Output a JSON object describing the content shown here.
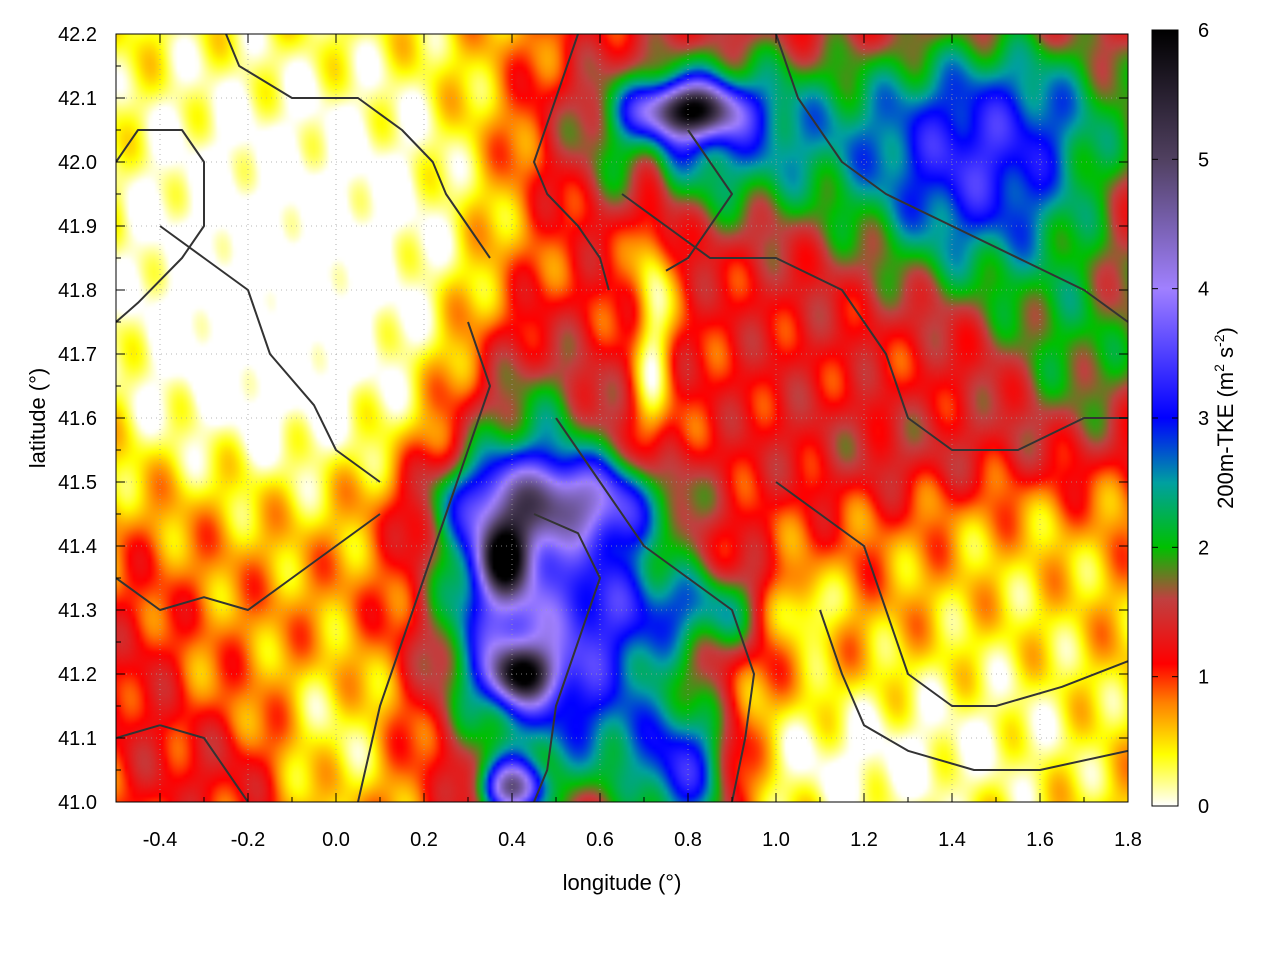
{
  "chart_data": {
    "type": "heatmap",
    "title": "",
    "xlabel": "longitude (°)",
    "ylabel": "latitude (°)",
    "xlim": [
      -0.5,
      1.8
    ],
    "ylim": [
      41.0,
      42.2
    ],
    "x_ticks": [
      "-0.4",
      "-0.2",
      "0.0",
      "0.2",
      "0.4",
      "0.6",
      "0.8",
      "1.0",
      "1.2",
      "1.4",
      "1.6",
      "1.8"
    ],
    "x_tick_values": [
      -0.4,
      -0.2,
      0.0,
      0.2,
      0.4,
      0.6,
      0.8,
      1.0,
      1.2,
      1.4,
      1.6,
      1.8
    ],
    "y_ticks": [
      "41.0",
      "41.1",
      "41.2",
      "41.3",
      "41.4",
      "41.5",
      "41.6",
      "41.7",
      "41.8",
      "41.9",
      "42.0",
      "42.1",
      "42.2"
    ],
    "y_tick_values": [
      41.0,
      41.1,
      41.2,
      41.3,
      41.4,
      41.5,
      41.6,
      41.7,
      41.8,
      41.9,
      42.0,
      42.1,
      42.2
    ],
    "grid": true,
    "colorbar": {
      "label_base": "200m-TKE (m",
      "label_sup1": "2",
      "label_mid": " s",
      "label_sup2": "-2",
      "label_end": ")",
      "range": [
        0,
        6
      ],
      "ticks": [
        "0",
        "1",
        "2",
        "3",
        "4",
        "5",
        "6"
      ],
      "tick_values": [
        0,
        1,
        2,
        3,
        4,
        5,
        6
      ],
      "palette_stops": [
        {
          "v": 0.0,
          "color": "#ffffff"
        },
        {
          "v": 0.4,
          "color": "#ffff00"
        },
        {
          "v": 0.8,
          "color": "#ff8000"
        },
        {
          "v": 1.1,
          "color": "#ff0000"
        },
        {
          "v": 1.6,
          "color": "#c04040"
        },
        {
          "v": 2.0,
          "color": "#00c000"
        },
        {
          "v": 2.5,
          "color": "#00a0a0"
        },
        {
          "v": 3.0,
          "color": "#0000ff"
        },
        {
          "v": 4.0,
          "color": "#a080ff"
        },
        {
          "v": 5.0,
          "color": "#504060"
        },
        {
          "v": 6.0,
          "color": "#000000"
        }
      ]
    },
    "field": {
      "background": 0.9,
      "blobs": [
        {
          "x": -0.35,
          "y": 41.9,
          "sx": 0.25,
          "sy": 0.35,
          "v": -0.8
        },
        {
          "x": 0.15,
          "y": 41.95,
          "sx": 0.25,
          "sy": 0.25,
          "v": -0.8
        },
        {
          "x": -0.1,
          "y": 41.65,
          "sx": 0.25,
          "sy": 0.15,
          "v": -0.5
        },
        {
          "x": -0.45,
          "y": 41.2,
          "sx": 0.08,
          "sy": 0.15,
          "v": 0.4
        },
        {
          "x": 0.45,
          "y": 41.7,
          "sx": 0.15,
          "sy": 0.15,
          "v": 0.5
        },
        {
          "x": 0.45,
          "y": 41.6,
          "sx": 0.12,
          "sy": 0.08,
          "v": 0.6
        },
        {
          "x": 0.85,
          "y": 42.05,
          "sx": 0.25,
          "sy": 0.1,
          "v": 1.8
        },
        {
          "x": 0.8,
          "y": 42.08,
          "sx": 0.08,
          "sy": 0.03,
          "v": 3.5
        },
        {
          "x": 1.45,
          "y": 41.95,
          "sx": 0.2,
          "sy": 0.12,
          "v": 1.8
        },
        {
          "x": 1.55,
          "y": 42.1,
          "sx": 0.25,
          "sy": 0.1,
          "v": 1.2
        },
        {
          "x": 0.5,
          "y": 41.47,
          "sx": 0.18,
          "sy": 0.05,
          "v": 2.5
        },
        {
          "x": 0.4,
          "y": 41.3,
          "sx": 0.12,
          "sy": 0.15,
          "v": 2.6
        },
        {
          "x": 0.38,
          "y": 41.38,
          "sx": 0.04,
          "sy": 0.04,
          "v": 3.0
        },
        {
          "x": 0.42,
          "y": 41.2,
          "sx": 0.05,
          "sy": 0.03,
          "v": 2.8
        },
        {
          "x": 0.6,
          "y": 41.15,
          "sx": 0.12,
          "sy": 0.12,
          "v": 1.5
        },
        {
          "x": 0.8,
          "y": 41.05,
          "sx": 0.08,
          "sy": 0.08,
          "v": 2.2
        },
        {
          "x": 0.4,
          "y": 41.02,
          "sx": 0.05,
          "sy": 0.03,
          "v": 3.0
        },
        {
          "x": 0.85,
          "y": 41.3,
          "sx": 0.12,
          "sy": 0.05,
          "v": 1.4
        },
        {
          "x": 1.05,
          "y": 41.3,
          "sx": 0.06,
          "sy": 0.04,
          "v": -1.0
        },
        {
          "x": 0.72,
          "y": 41.75,
          "sx": 0.03,
          "sy": 0.2,
          "v": -0.9
        },
        {
          "x": 0.65,
          "y": 41.35,
          "sx": 0.1,
          "sy": 0.1,
          "v": 1.2
        },
        {
          "x": 1.5,
          "y": 41.1,
          "sx": 0.3,
          "sy": 0.15,
          "v": -0.7
        },
        {
          "x": 1.1,
          "y": 41.05,
          "sx": 0.2,
          "sy": 0.08,
          "v": -0.6
        },
        {
          "x": 1.6,
          "y": 41.4,
          "sx": 0.2,
          "sy": 0.1,
          "v": -0.3
        },
        {
          "x": 1.0,
          "y": 41.7,
          "sx": 0.2,
          "sy": 0.15,
          "v": 0.3
        },
        {
          "x": 1.3,
          "y": 41.55,
          "sx": 0.2,
          "sy": 0.06,
          "v": 0.5
        },
        {
          "x": 1.7,
          "y": 41.7,
          "sx": 0.15,
          "sy": 0.12,
          "v": 1.0
        },
        {
          "x": -0.3,
          "y": 41.45,
          "sx": 0.12,
          "sy": 0.1,
          "v": 0.2
        },
        {
          "x": 0.0,
          "y": 41.1,
          "sx": 0.1,
          "sy": 0.1,
          "v": -0.6
        },
        {
          "x": -0.25,
          "y": 41.05,
          "sx": 0.1,
          "sy": 0.06,
          "v": 0.4
        }
      ]
    },
    "contours": [
      [
        [
          -0.5,
          42.0
        ],
        [
          -0.45,
          42.05
        ],
        [
          -0.35,
          42.05
        ],
        [
          -0.3,
          42.0
        ],
        [
          -0.3,
          41.9
        ],
        [
          -0.35,
          41.85
        ],
        [
          -0.45,
          41.78
        ],
        [
          -0.5,
          41.75
        ]
      ],
      [
        [
          -0.25,
          42.2
        ],
        [
          -0.22,
          42.15
        ],
        [
          -0.1,
          42.1
        ],
        [
          0.05,
          42.1
        ],
        [
          0.15,
          42.05
        ],
        [
          0.22,
          42.0
        ],
        [
          0.25,
          41.95
        ],
        [
          0.3,
          41.9
        ],
        [
          0.35,
          41.85
        ]
      ],
      [
        [
          -0.4,
          41.9
        ],
        [
          -0.3,
          41.85
        ],
        [
          -0.2,
          41.8
        ],
        [
          -0.15,
          41.7
        ],
        [
          -0.05,
          41.62
        ],
        [
          0.0,
          41.55
        ],
        [
          0.1,
          41.5
        ]
      ],
      [
        [
          0.55,
          42.2
        ],
        [
          0.5,
          42.1
        ],
        [
          0.45,
          42.0
        ],
        [
          0.48,
          41.95
        ],
        [
          0.55,
          41.9
        ],
        [
          0.6,
          41.85
        ],
        [
          0.62,
          41.8
        ]
      ],
      [
        [
          0.8,
          42.05
        ],
        [
          0.85,
          42.0
        ],
        [
          0.9,
          41.95
        ],
        [
          0.85,
          41.9
        ],
        [
          0.8,
          41.85
        ],
        [
          0.75,
          41.83
        ]
      ],
      [
        [
          1.0,
          42.2
        ],
        [
          1.05,
          42.1
        ],
        [
          1.15,
          42.0
        ],
        [
          1.25,
          41.95
        ],
        [
          1.4,
          41.9
        ],
        [
          1.55,
          41.85
        ],
        [
          1.7,
          41.8
        ],
        [
          1.8,
          41.75
        ]
      ],
      [
        [
          0.3,
          41.75
        ],
        [
          0.35,
          41.65
        ],
        [
          0.3,
          41.55
        ],
        [
          0.25,
          41.45
        ],
        [
          0.2,
          41.35
        ],
        [
          0.15,
          41.25
        ],
        [
          0.1,
          41.15
        ],
        [
          0.05,
          41.0
        ]
      ],
      [
        [
          0.5,
          41.6
        ],
        [
          0.6,
          41.5
        ],
        [
          0.7,
          41.4
        ],
        [
          0.8,
          41.35
        ],
        [
          0.9,
          41.3
        ],
        [
          0.95,
          41.2
        ],
        [
          0.93,
          41.1
        ],
        [
          0.9,
          41.0
        ]
      ],
      [
        [
          1.0,
          41.5
        ],
        [
          1.1,
          41.45
        ],
        [
          1.2,
          41.4
        ],
        [
          1.25,
          41.3
        ],
        [
          1.3,
          41.2
        ],
        [
          1.4,
          41.15
        ],
        [
          1.5,
          41.15
        ],
        [
          1.65,
          41.18
        ],
        [
          1.8,
          41.22
        ]
      ],
      [
        [
          1.1,
          41.3
        ],
        [
          1.15,
          41.2
        ],
        [
          1.2,
          41.12
        ],
        [
          1.3,
          41.08
        ],
        [
          1.45,
          41.05
        ],
        [
          1.6,
          41.05
        ],
        [
          1.8,
          41.08
        ]
      ],
      [
        [
          -0.5,
          41.35
        ],
        [
          -0.4,
          41.3
        ],
        [
          -0.3,
          41.32
        ],
        [
          -0.2,
          41.3
        ],
        [
          -0.1,
          41.35
        ],
        [
          0.0,
          41.4
        ],
        [
          0.1,
          41.45
        ]
      ],
      [
        [
          -0.5,
          41.1
        ],
        [
          -0.4,
          41.12
        ],
        [
          -0.3,
          41.1
        ],
        [
          -0.25,
          41.05
        ],
        [
          -0.2,
          41.0
        ]
      ],
      [
        [
          0.45,
          41.45
        ],
        [
          0.55,
          41.42
        ],
        [
          0.6,
          41.35
        ],
        [
          0.55,
          41.25
        ],
        [
          0.5,
          41.15
        ],
        [
          0.48,
          41.05
        ],
        [
          0.45,
          41.0
        ]
      ],
      [
        [
          0.65,
          41.95
        ],
        [
          0.75,
          41.9
        ],
        [
          0.85,
          41.85
        ],
        [
          1.0,
          41.85
        ],
        [
          1.15,
          41.8
        ],
        [
          1.25,
          41.7
        ],
        [
          1.3,
          41.6
        ],
        [
          1.4,
          41.55
        ],
        [
          1.55,
          41.55
        ],
        [
          1.7,
          41.6
        ],
        [
          1.8,
          41.6
        ]
      ]
    ]
  }
}
